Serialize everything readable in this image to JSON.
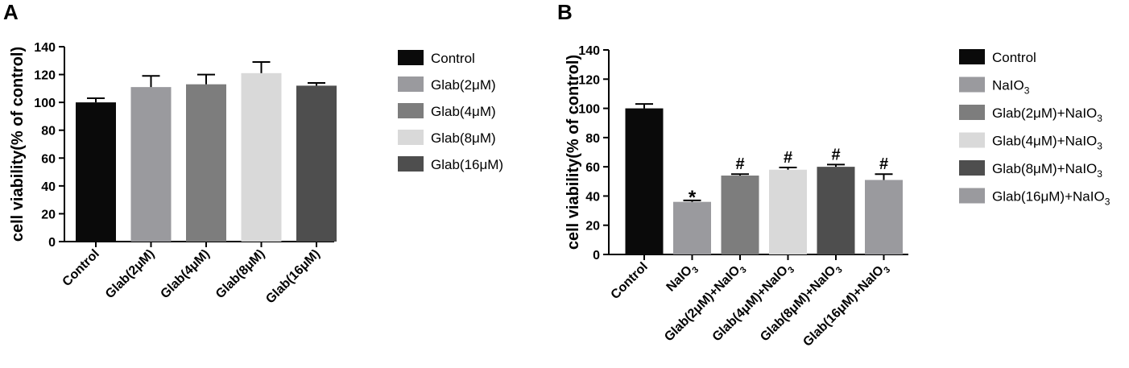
{
  "chart_data": [
    {
      "type": "bar",
      "panel_label": "A",
      "categories": [
        "Control",
        "Glab(2μM)",
        "Glab(4μM)",
        "Glab(8μM)",
        "Glab(16μM)"
      ],
      "values": [
        100,
        111,
        113,
        121,
        112
      ],
      "errors": [
        3,
        8,
        7,
        8,
        2
      ],
      "colors": [
        "#0a0a0a",
        "#9a9a9e",
        "#7d7d7d",
        "#d9d9d9",
        "#4e4e4e"
      ],
      "ylabel": "cell viability(% of control)",
      "xlabel": "",
      "ylim": [
        0,
        140
      ],
      "yticks": [
        0,
        20,
        40,
        60,
        80,
        100,
        120,
        140
      ],
      "legend": [
        "Control",
        "Glab(2μM)",
        "Glab(4μM)",
        "Glab(8μM)",
        "Glab(16μM)"
      ],
      "legend_position": "right",
      "grid": false
    },
    {
      "type": "bar",
      "panel_label": "B",
      "categories": [
        "Control",
        "NaIO3",
        "Glab(2μM)+NaIO3",
        "Glab(4μM)+NaIO3",
        "Glab(8μM)+NaIO3",
        "Glab(16μM)+NaIO3"
      ],
      "values": [
        100,
        36,
        54,
        58,
        60,
        51
      ],
      "errors": [
        3,
        1,
        1,
        1.5,
        1.5,
        4
      ],
      "annotations": [
        "",
        "*",
        "#",
        "#",
        "#",
        "#"
      ],
      "colors": [
        "#0a0a0a",
        "#9a9a9e",
        "#7d7d7d",
        "#d9d9d9",
        "#4e4e4e",
        "#9a9a9e"
      ],
      "ylabel": "cell viability(% of control)",
      "xlabel": "",
      "ylim": [
        0,
        140
      ],
      "yticks": [
        0,
        20,
        40,
        60,
        80,
        100,
        120,
        140
      ],
      "legend": [
        "Control",
        "NaIO3",
        "Glab(2μM)+NaIO3",
        "Glab(4μM)+NaIO3",
        "Glab(8μM)+NaIO3",
        "Glab(16μM)+NaIO3"
      ],
      "legend_position": "right",
      "grid": false
    }
  ]
}
